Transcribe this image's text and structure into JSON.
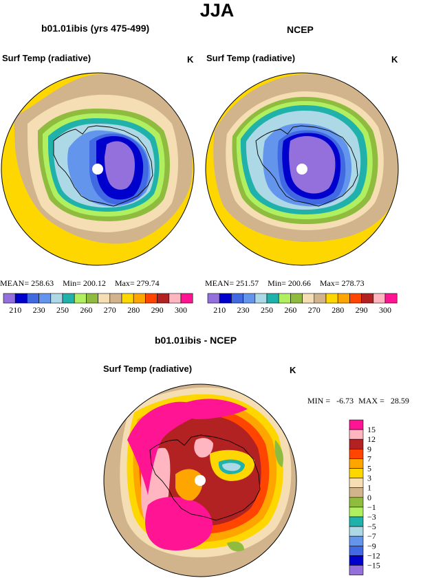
{
  "header": {
    "title": "JJA"
  },
  "panels": {
    "model": {
      "title": "b01.01ibis (yrs 475-499)",
      "variable": "Surf Temp (radiative)",
      "units": "K",
      "stats": {
        "mean_label": "MEAN=",
        "mean": "258.63",
        "min_label": "Min=",
        "min": "200.12",
        "max_label": "Max=",
        "max": "279.74"
      }
    },
    "obs": {
      "title": "NCEP",
      "variable": "Surf Temp (radiative)",
      "units": "K",
      "stats": {
        "mean_label": "MEAN=",
        "mean": "251.57",
        "min_label": "Min=",
        "min": "200.66",
        "max_label": "Max=",
        "max": "278.73"
      }
    },
    "diff": {
      "title": "b01.01ibis - NCEP",
      "variable": "Surf Temp (radiative)",
      "units": "K",
      "stats": {
        "min_label": "MIN =",
        "min": "-6.73",
        "max_label": "MAX =",
        "max": "28.59"
      }
    }
  },
  "colorbar_abs": {
    "colors": [
      "#9370db",
      "#0000cd",
      "#4169e1",
      "#6495ed",
      "#add8e6",
      "#20b2aa",
      "#b0f060",
      "#8fbc3f",
      "#f5deb3",
      "#d2b48c",
      "#ffd700",
      "#ffa500",
      "#ff4500",
      "#b22222",
      "#ffb6c1",
      "#ff1493"
    ],
    "labels": [
      "210",
      "230",
      "250",
      "260",
      "270",
      "280",
      "290",
      "300"
    ]
  },
  "colorbar_diff": {
    "colors": [
      "#ff1493",
      "#ffb6c1",
      "#b22222",
      "#ff4500",
      "#ffa500",
      "#ffd700",
      "#f5deb3",
      "#d2b48c",
      "#8fbc3f",
      "#b0f060",
      "#20b2aa",
      "#add8e6",
      "#6495ed",
      "#4169e1",
      "#0000cd",
      "#9370db"
    ],
    "labels": [
      "15",
      "12",
      "9",
      "7",
      "5",
      "3",
      "1",
      "0",
      "−1",
      "−3",
      "−5",
      "−7",
      "−9",
      "−12",
      "−15"
    ]
  }
}
